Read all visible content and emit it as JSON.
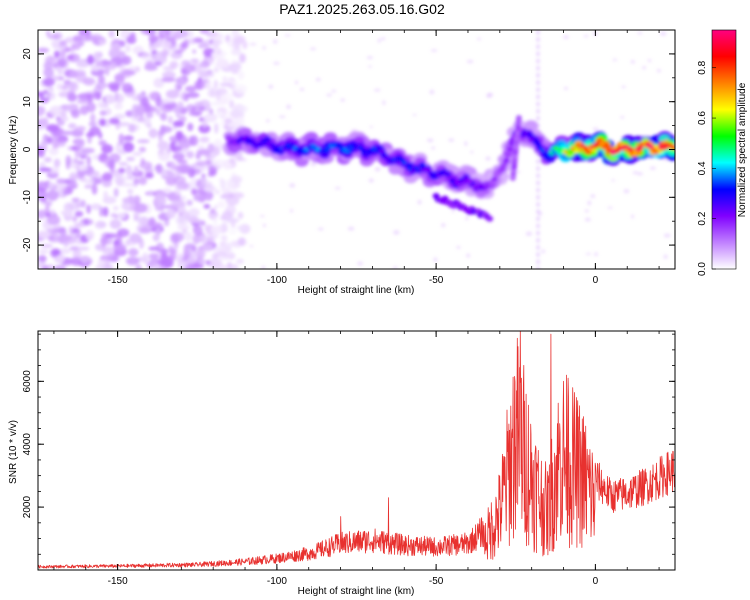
{
  "title": "PAZ1.2025.263.05.16.G02",
  "chart_data": [
    {
      "type": "heatmap",
      "title": "PAZ1.2025.263.05.16.G02",
      "xlabel": "Height of straight line (km)",
      "ylabel": "Frequency (Hz)",
      "xlim": [
        -175,
        25
      ],
      "ylim": [
        -25,
        25
      ],
      "xticks": [
        -150,
        -100,
        -50,
        0
      ],
      "xtick_labels": [
        "-150",
        "-100",
        "-50",
        "0"
      ],
      "yticks": [
        -20,
        -10,
        0,
        10,
        20
      ],
      "ytick_labels": [
        "-20",
        "-10",
        "0",
        "10",
        "20"
      ],
      "colorbar": {
        "label": "Normalized spectral amplitude",
        "range": [
          0,
          0.95
        ],
        "ticks": [
          0.0,
          0.2,
          0.4,
          0.6,
          0.8
        ],
        "tick_labels": [
          "0.0",
          "0.2",
          "0.4",
          "0.6",
          "0.8"
        ],
        "colors": [
          "#ffffff",
          "#c080ff",
          "#8000ff",
          "#0000ff",
          "#00ffff",
          "#00ff00",
          "#ffff00",
          "#ff8000",
          "#ff0000",
          "#ff0080"
        ]
      },
      "ridge": {
        "x": [
          -115,
          -110,
          -100,
          -90,
          -80,
          -70,
          -60,
          -50,
          -40,
          -33,
          -30,
          -27,
          -25,
          -22,
          -18,
          -15,
          -10,
          -5,
          0,
          5,
          10,
          15,
          20,
          25
        ],
        "y": [
          2,
          2,
          0.5,
          0,
          0.5,
          0,
          -3,
          -5,
          -7,
          -8,
          -4,
          -1,
          3,
          4,
          1,
          -1,
          0,
          0,
          1,
          0,
          0,
          0.5,
          0.5,
          0.5
        ],
        "amplitude": [
          0.2,
          0.25,
          0.3,
          0.35,
          0.35,
          0.3,
          0.3,
          0.28,
          0.25,
          0.2,
          0.15,
          0.2,
          0.22,
          0.25,
          0.3,
          0.35,
          0.6,
          0.8,
          0.85,
          0.9,
          0.85,
          0.8,
          0.85,
          0.75
        ]
      },
      "noise_region": {
        "x": [
          -175,
          -120
        ],
        "y": [
          -25,
          25
        ],
        "amplitude": 0.08
      }
    },
    {
      "type": "line",
      "xlabel": "Height of straight line (km)",
      "ylabel": "SNR (10 * v/v)",
      "xlim": [
        -175,
        25
      ],
      "ylim": [
        0,
        7600
      ],
      "xticks": [
        -150,
        -100,
        -50,
        0
      ],
      "xtick_labels": [
        "-150",
        "-100",
        "-50",
        "0"
      ],
      "yticks": [
        2000,
        4000,
        6000
      ],
      "ytick_labels": [
        "2000",
        "4000",
        "6000"
      ],
      "color": "#e8312f",
      "envelope": {
        "x": [
          -175,
          -150,
          -125,
          -110,
          -100,
          -90,
          -80,
          -70,
          -60,
          -50,
          -40,
          -35,
          -30,
          -27,
          -25,
          -22,
          -20,
          -17,
          -15,
          -12,
          -10,
          -7,
          -5,
          -3,
          0,
          5,
          10,
          15,
          20,
          25
        ],
        "y": [
          100,
          120,
          160,
          250,
          350,
          500,
          800,
          900,
          750,
          700,
          800,
          1200,
          2500,
          4500,
          6000,
          5000,
          4000,
          3000,
          2500,
          4500,
          5000,
          4500,
          4200,
          3800,
          3000,
          2400,
          2500,
          2700,
          3000,
          3300
        ]
      },
      "peaks": [
        {
          "x": -23.5,
          "y": 7600
        },
        {
          "x": -14,
          "y": 7500
        },
        {
          "x": -8.5,
          "y": 6100
        },
        {
          "x": -80,
          "y": 1700
        },
        {
          "x": -65,
          "y": 2300
        }
      ]
    }
  ]
}
